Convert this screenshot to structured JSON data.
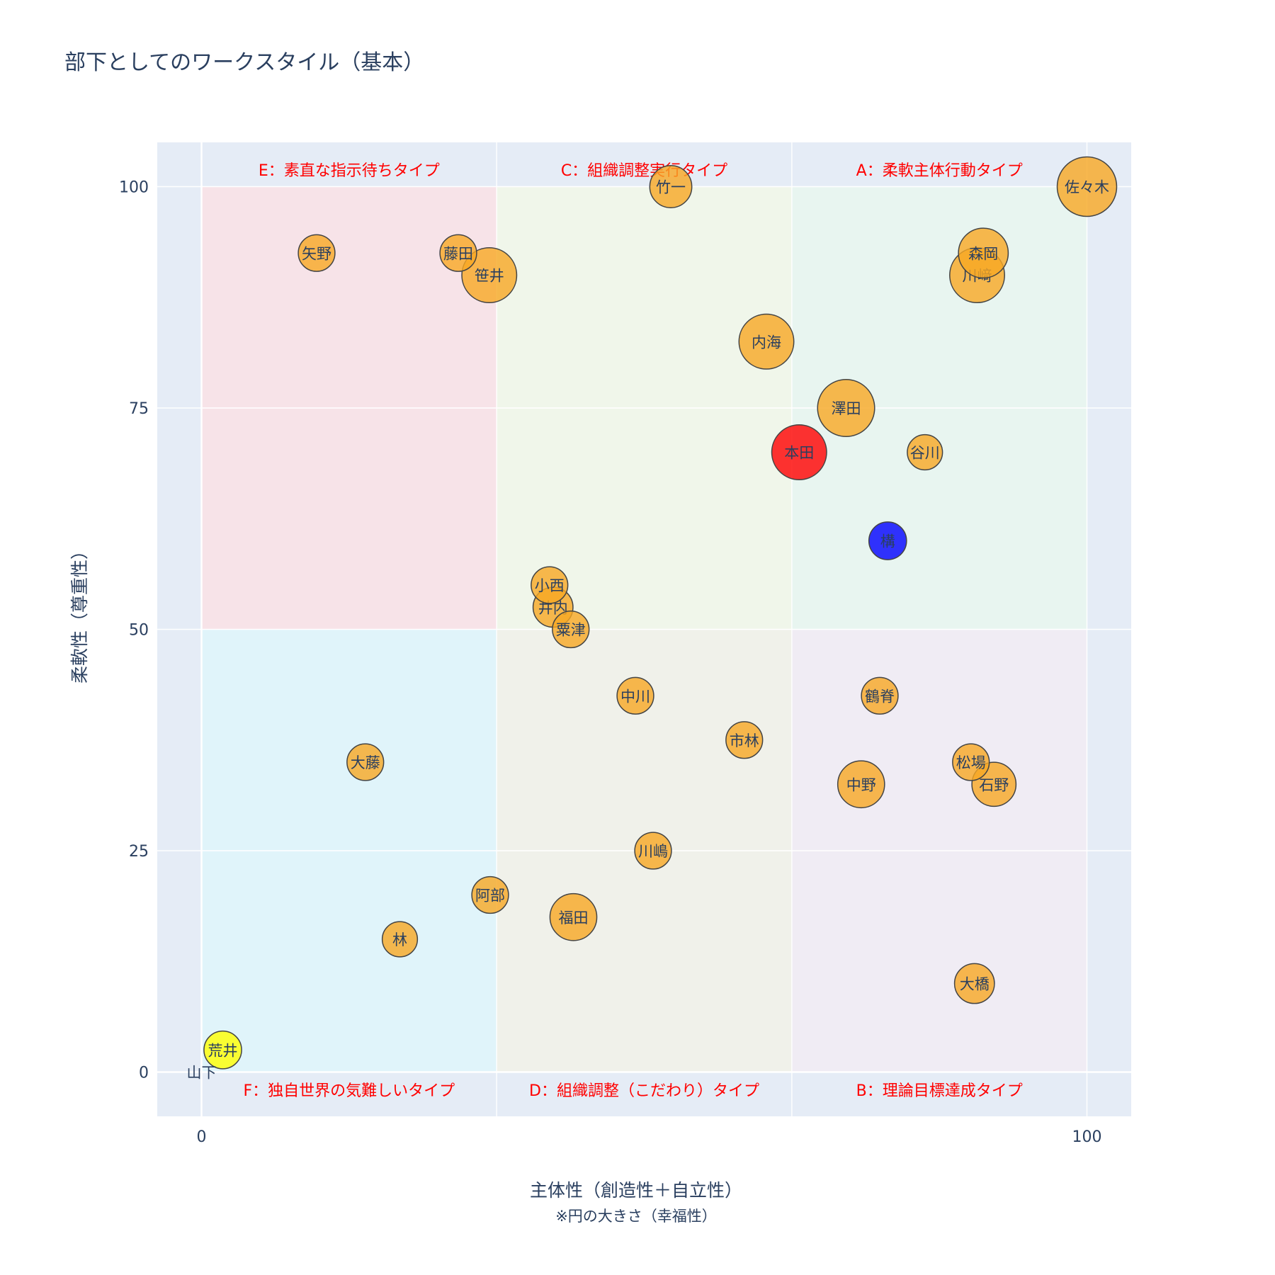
{
  "chart_data": {
    "type": "scatter",
    "title": "部下としてのワークスタイル（基本）",
    "xlabel": "主体性（創造性＋自立性）",
    "xlabel_note": "※円の大きさ（幸福性）",
    "ylabel": "柔軟性（尊重性）",
    "xlim": [
      -5,
      105
    ],
    "ylim": [
      -5,
      105
    ],
    "x_ticks": [
      0,
      100
    ],
    "y_ticks": [
      0,
      25,
      50,
      75,
      100
    ],
    "grid": true,
    "colors": {
      "plot_bg": "#e5ecf6",
      "grid": "#ffffff",
      "default_marker": "#f7a823",
      "marker_line": "#444444",
      "quadrant_label": "#ff0000"
    },
    "quadrants": [
      {
        "label": "E：素直な指示待ちタイプ",
        "x0": 0,
        "x1": 33.33,
        "y0": 50,
        "y1": 100,
        "fill": "#f7e3e8"
      },
      {
        "label": "C：組織調整実行タイプ",
        "x0": 33.33,
        "x1": 66.67,
        "y0": 50,
        "y1": 100,
        "fill": "#f0f6ea"
      },
      {
        "label": "A：柔軟主体行動タイプ",
        "x0": 66.67,
        "x1": 100,
        "y0": 50,
        "y1": 100,
        "fill": "#e8f5f0"
      },
      {
        "label": "F：独自世界の気難しいタイプ",
        "x0": 0,
        "x1": 33.33,
        "y0": 0,
        "y1": 50,
        "fill": "#e0f4fa"
      },
      {
        "label": "D：組織調整（こだわり）タイプ",
        "x0": 33.33,
        "x1": 66.67,
        "y0": 0,
        "y1": 50,
        "fill": "#f0f1ea"
      },
      {
        "label": "B：理論目標達成タイプ",
        "x0": 66.67,
        "x1": 100,
        "y0": 0,
        "y1": 50,
        "fill": "#f0ecf4"
      }
    ],
    "points": [
      {
        "name": "佐々木",
        "x": 100,
        "y": 100,
        "size": 100,
        "color": "#f7a823"
      },
      {
        "name": "竹一",
        "x": 53,
        "y": 100,
        "size": 50,
        "color": "#f7a823"
      },
      {
        "name": "森岡",
        "x": 88.3,
        "y": 92.5,
        "size": 70,
        "color": "#f7a823"
      },
      {
        "name": "川﨑",
        "x": 87.6,
        "y": 90,
        "size": 85,
        "color": "#f7a823"
      },
      {
        "name": "矢野",
        "x": 13,
        "y": 92.5,
        "size": 38,
        "color": "#f7a823"
      },
      {
        "name": "藤田",
        "x": 29,
        "y": 92.5,
        "size": 38,
        "color": "#f7a823"
      },
      {
        "name": "笹井",
        "x": 32.5,
        "y": 90,
        "size": 85,
        "color": "#f7a823"
      },
      {
        "name": "内海",
        "x": 63.8,
        "y": 82.5,
        "size": 85,
        "color": "#f7a823"
      },
      {
        "name": "澤田",
        "x": 72.8,
        "y": 75,
        "size": 92,
        "color": "#f7a823"
      },
      {
        "name": "本田",
        "x": 67.5,
        "y": 70,
        "size": 85,
        "color": "#ff0000"
      },
      {
        "name": "谷川",
        "x": 81.7,
        "y": 70,
        "size": 35,
        "color": "#f7a823"
      },
      {
        "name": "構",
        "x": 77.5,
        "y": 60,
        "size": 40,
        "color": "#0000ff"
      },
      {
        "name": "小西",
        "x": 39.3,
        "y": 55,
        "size": 38,
        "color": "#f7a823"
      },
      {
        "name": "井内",
        "x": 39.7,
        "y": 52.5,
        "size": 45,
        "color": "#f7a823"
      },
      {
        "name": "粟津",
        "x": 41.7,
        "y": 50,
        "size": 38,
        "color": "#f7a823"
      },
      {
        "name": "中川",
        "x": 49,
        "y": 42.5,
        "size": 38,
        "color": "#f7a823"
      },
      {
        "name": "鶴脊",
        "x": 76.6,
        "y": 42.5,
        "size": 38,
        "color": "#f7a823"
      },
      {
        "name": "市林",
        "x": 61.3,
        "y": 37.5,
        "size": 38,
        "color": "#f7a823"
      },
      {
        "name": "大藤",
        "x": 18.5,
        "y": 35,
        "size": 38,
        "color": "#f7a823"
      },
      {
        "name": "松場",
        "x": 86.9,
        "y": 35,
        "size": 38,
        "color": "#f7a823"
      },
      {
        "name": "中野",
        "x": 74.5,
        "y": 32.5,
        "size": 62,
        "color": "#f7a823"
      },
      {
        "name": "石野",
        "x": 89.5,
        "y": 32.5,
        "size": 55,
        "color": "#f7a823"
      },
      {
        "name": "川嶋",
        "x": 51,
        "y": 25,
        "size": 38,
        "color": "#f7a823"
      },
      {
        "name": "阿部",
        "x": 32.6,
        "y": 20,
        "size": 38,
        "color": "#f7a823"
      },
      {
        "name": "福田",
        "x": 42,
        "y": 17.5,
        "size": 62,
        "color": "#f7a823"
      },
      {
        "name": "林",
        "x": 22.4,
        "y": 15,
        "size": 35,
        "color": "#f7a823"
      },
      {
        "name": "大橋",
        "x": 87.3,
        "y": 10,
        "size": 45,
        "color": "#f7a823"
      },
      {
        "name": "荒井",
        "x": 2.4,
        "y": 2.5,
        "size": 40,
        "color": "#ffff00"
      },
      {
        "name": "山下",
        "x": 0,
        "y": 0,
        "size": 0,
        "color": "#f7a823"
      }
    ]
  }
}
